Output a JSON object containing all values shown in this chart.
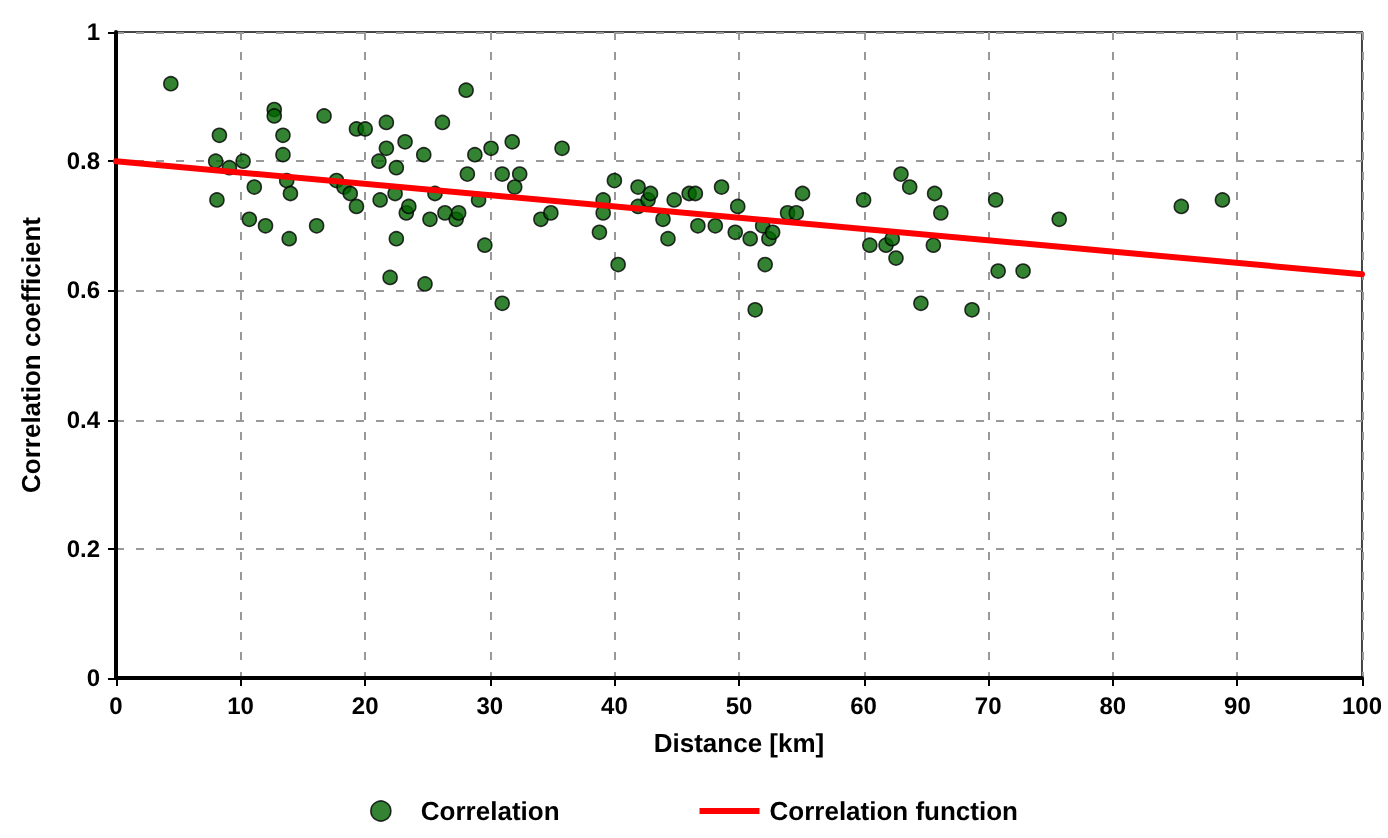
{
  "chart_data": {
    "type": "scatter",
    "xlabel": "Distance [km]",
    "ylabel": "Correlation coefficient",
    "xlim": [
      0,
      100
    ],
    "xticks": [
      0,
      10,
      20,
      30,
      40,
      50,
      60,
      70,
      80,
      90,
      100
    ],
    "ylim": [
      0,
      1
    ],
    "yticks": [
      0,
      0.2,
      0.4,
      0.6,
      0.8,
      1
    ],
    "grid": true,
    "legend": "bottom",
    "marker": "circle",
    "series": [
      {
        "name": "Correlation",
        "color": "#006400",
        "x": [
          4.4,
          8.3,
          8.0,
          9.1,
          8.1,
          10.2,
          11.1,
          10.7,
          12.0,
          12.7,
          12.7,
          13.4,
          13.4,
          13.7,
          14.0,
          13.9,
          16.1,
          16.7,
          17.7,
          18.3,
          18.8,
          19.3,
          19.3,
          20.0,
          21.7,
          21.7,
          21.1,
          22.5,
          22.4,
          21.2,
          23.2,
          23.3,
          23.5,
          22.5,
          22.0,
          24.8,
          25.2,
          24.7,
          25.6,
          26.2,
          26.4,
          27.3,
          27.5,
          28.1,
          28.2,
          28.8,
          29.1,
          29.6,
          30.1,
          31.0,
          32.4,
          31.8,
          32.0,
          34.1,
          34.9,
          31.0,
          35.8,
          38.8,
          39.1,
          39.1,
          40.0,
          40.3,
          41.9,
          41.9,
          42.7,
          42.9,
          43.9,
          44.3,
          44.8,
          46.0,
          46.5,
          46.7,
          48.1,
          48.6,
          49.7,
          49.9,
          50.9,
          51.9,
          52.4,
          52.7,
          52.1,
          51.3,
          53.9,
          54.6,
          55.1,
          60.0,
          60.5,
          61.8,
          62.3,
          62.6,
          63.0,
          63.7,
          64.6,
          65.7,
          65.6,
          66.2,
          68.7,
          70.6,
          70.8,
          72.8,
          75.7,
          85.5,
          88.8
        ],
        "values": [
          0.92,
          0.84,
          0.8,
          0.79,
          0.74,
          0.8,
          0.76,
          0.71,
          0.7,
          0.88,
          0.87,
          0.84,
          0.81,
          0.77,
          0.75,
          0.68,
          0.7,
          0.87,
          0.77,
          0.76,
          0.75,
          0.73,
          0.85,
          0.85,
          0.86,
          0.82,
          0.8,
          0.79,
          0.75,
          0.74,
          0.83,
          0.72,
          0.73,
          0.68,
          0.62,
          0.61,
          0.71,
          0.81,
          0.75,
          0.86,
          0.72,
          0.71,
          0.72,
          0.91,
          0.78,
          0.81,
          0.74,
          0.67,
          0.82,
          0.78,
          0.78,
          0.83,
          0.76,
          0.71,
          0.72,
          0.58,
          0.82,
          0.69,
          0.72,
          0.74,
          0.77,
          0.64,
          0.76,
          0.73,
          0.74,
          0.75,
          0.71,
          0.68,
          0.74,
          0.75,
          0.75,
          0.7,
          0.7,
          0.76,
          0.69,
          0.73,
          0.68,
          0.7,
          0.68,
          0.69,
          0.64,
          0.57,
          0.72,
          0.72,
          0.75,
          0.74,
          0.67,
          0.67,
          0.68,
          0.65,
          0.78,
          0.76,
          0.58,
          0.75,
          0.67,
          0.72,
          0.57,
          0.74,
          0.63,
          0.63,
          0.71,
          0.73,
          0.74
        ]
      },
      {
        "name": "Correlation function",
        "type": "line",
        "color": "#ff0000",
        "marker": "none",
        "line_style": "solid",
        "x": [
          0,
          100
        ],
        "values": [
          0.8,
          0.625
        ]
      }
    ]
  }
}
